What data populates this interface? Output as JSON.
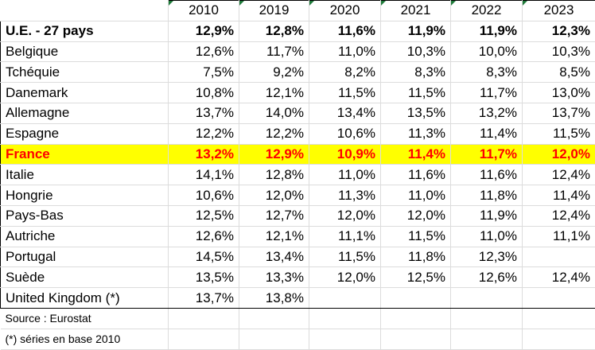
{
  "years": [
    "2010",
    "2019",
    "2020",
    "2021",
    "2022",
    "2023"
  ],
  "rows": [
    {
      "label": "U.E. - 27 pays",
      "values": [
        "12,9%",
        "12,8%",
        "11,6%",
        "11,9%",
        "11,9%",
        "12,3%"
      ]
    },
    {
      "label": "Belgique",
      "values": [
        "12,6%",
        "11,7%",
        "11,0%",
        "10,3%",
        "10,0%",
        "10,3%"
      ]
    },
    {
      "label": "Tchéquie",
      "values": [
        "7,5%",
        "9,2%",
        "8,2%",
        "8,3%",
        "8,3%",
        "8,5%"
      ]
    },
    {
      "label": "Danemark",
      "values": [
        "10,8%",
        "12,1%",
        "11,5%",
        "11,5%",
        "11,7%",
        "13,0%"
      ]
    },
    {
      "label": "Allemagne",
      "values": [
        "13,7%",
        "14,0%",
        "13,4%",
        "13,5%",
        "13,2%",
        "13,7%"
      ]
    },
    {
      "label": "Espagne",
      "values": [
        "12,2%",
        "12,2%",
        "10,6%",
        "11,3%",
        "11,4%",
        "11,5%"
      ]
    },
    {
      "label": "France",
      "values": [
        "13,2%",
        "12,9%",
        "10,9%",
        "11,4%",
        "11,7%",
        "12,0%"
      ]
    },
    {
      "label": "Italie",
      "values": [
        "14,1%",
        "12,8%",
        "11,0%",
        "11,6%",
        "11,6%",
        "12,4%"
      ]
    },
    {
      "label": "Hongrie",
      "values": [
        "10,6%",
        "12,0%",
        "11,3%",
        "11,0%",
        "11,8%",
        "11,4%"
      ]
    },
    {
      "label": "Pays-Bas",
      "values": [
        "12,5%",
        "12,7%",
        "12,0%",
        "12,0%",
        "11,9%",
        "12,4%"
      ]
    },
    {
      "label": "Autriche",
      "values": [
        "12,6%",
        "12,1%",
        "11,1%",
        "11,5%",
        "11,0%",
        "11,1%"
      ]
    },
    {
      "label": "Portugal",
      "values": [
        "14,5%",
        "13,4%",
        "11,5%",
        "11,8%",
        "12,3%",
        ""
      ]
    },
    {
      "label": "Suède",
      "values": [
        "13,5%",
        "13,3%",
        "12,0%",
        "12,5%",
        "12,6%",
        "12,4%"
      ]
    },
    {
      "label": "United Kingdom (*)",
      "values": [
        "13,7%",
        "13,8%",
        "",
        "",
        "",
        ""
      ]
    }
  ],
  "notes": [
    "Source : Eurostat",
    "(*) séries en base 2010"
  ],
  "colors": {
    "highlight_bg": "#ffff00",
    "highlight_text": "#ff0000",
    "corner_marker": "#1f7a3a"
  }
}
